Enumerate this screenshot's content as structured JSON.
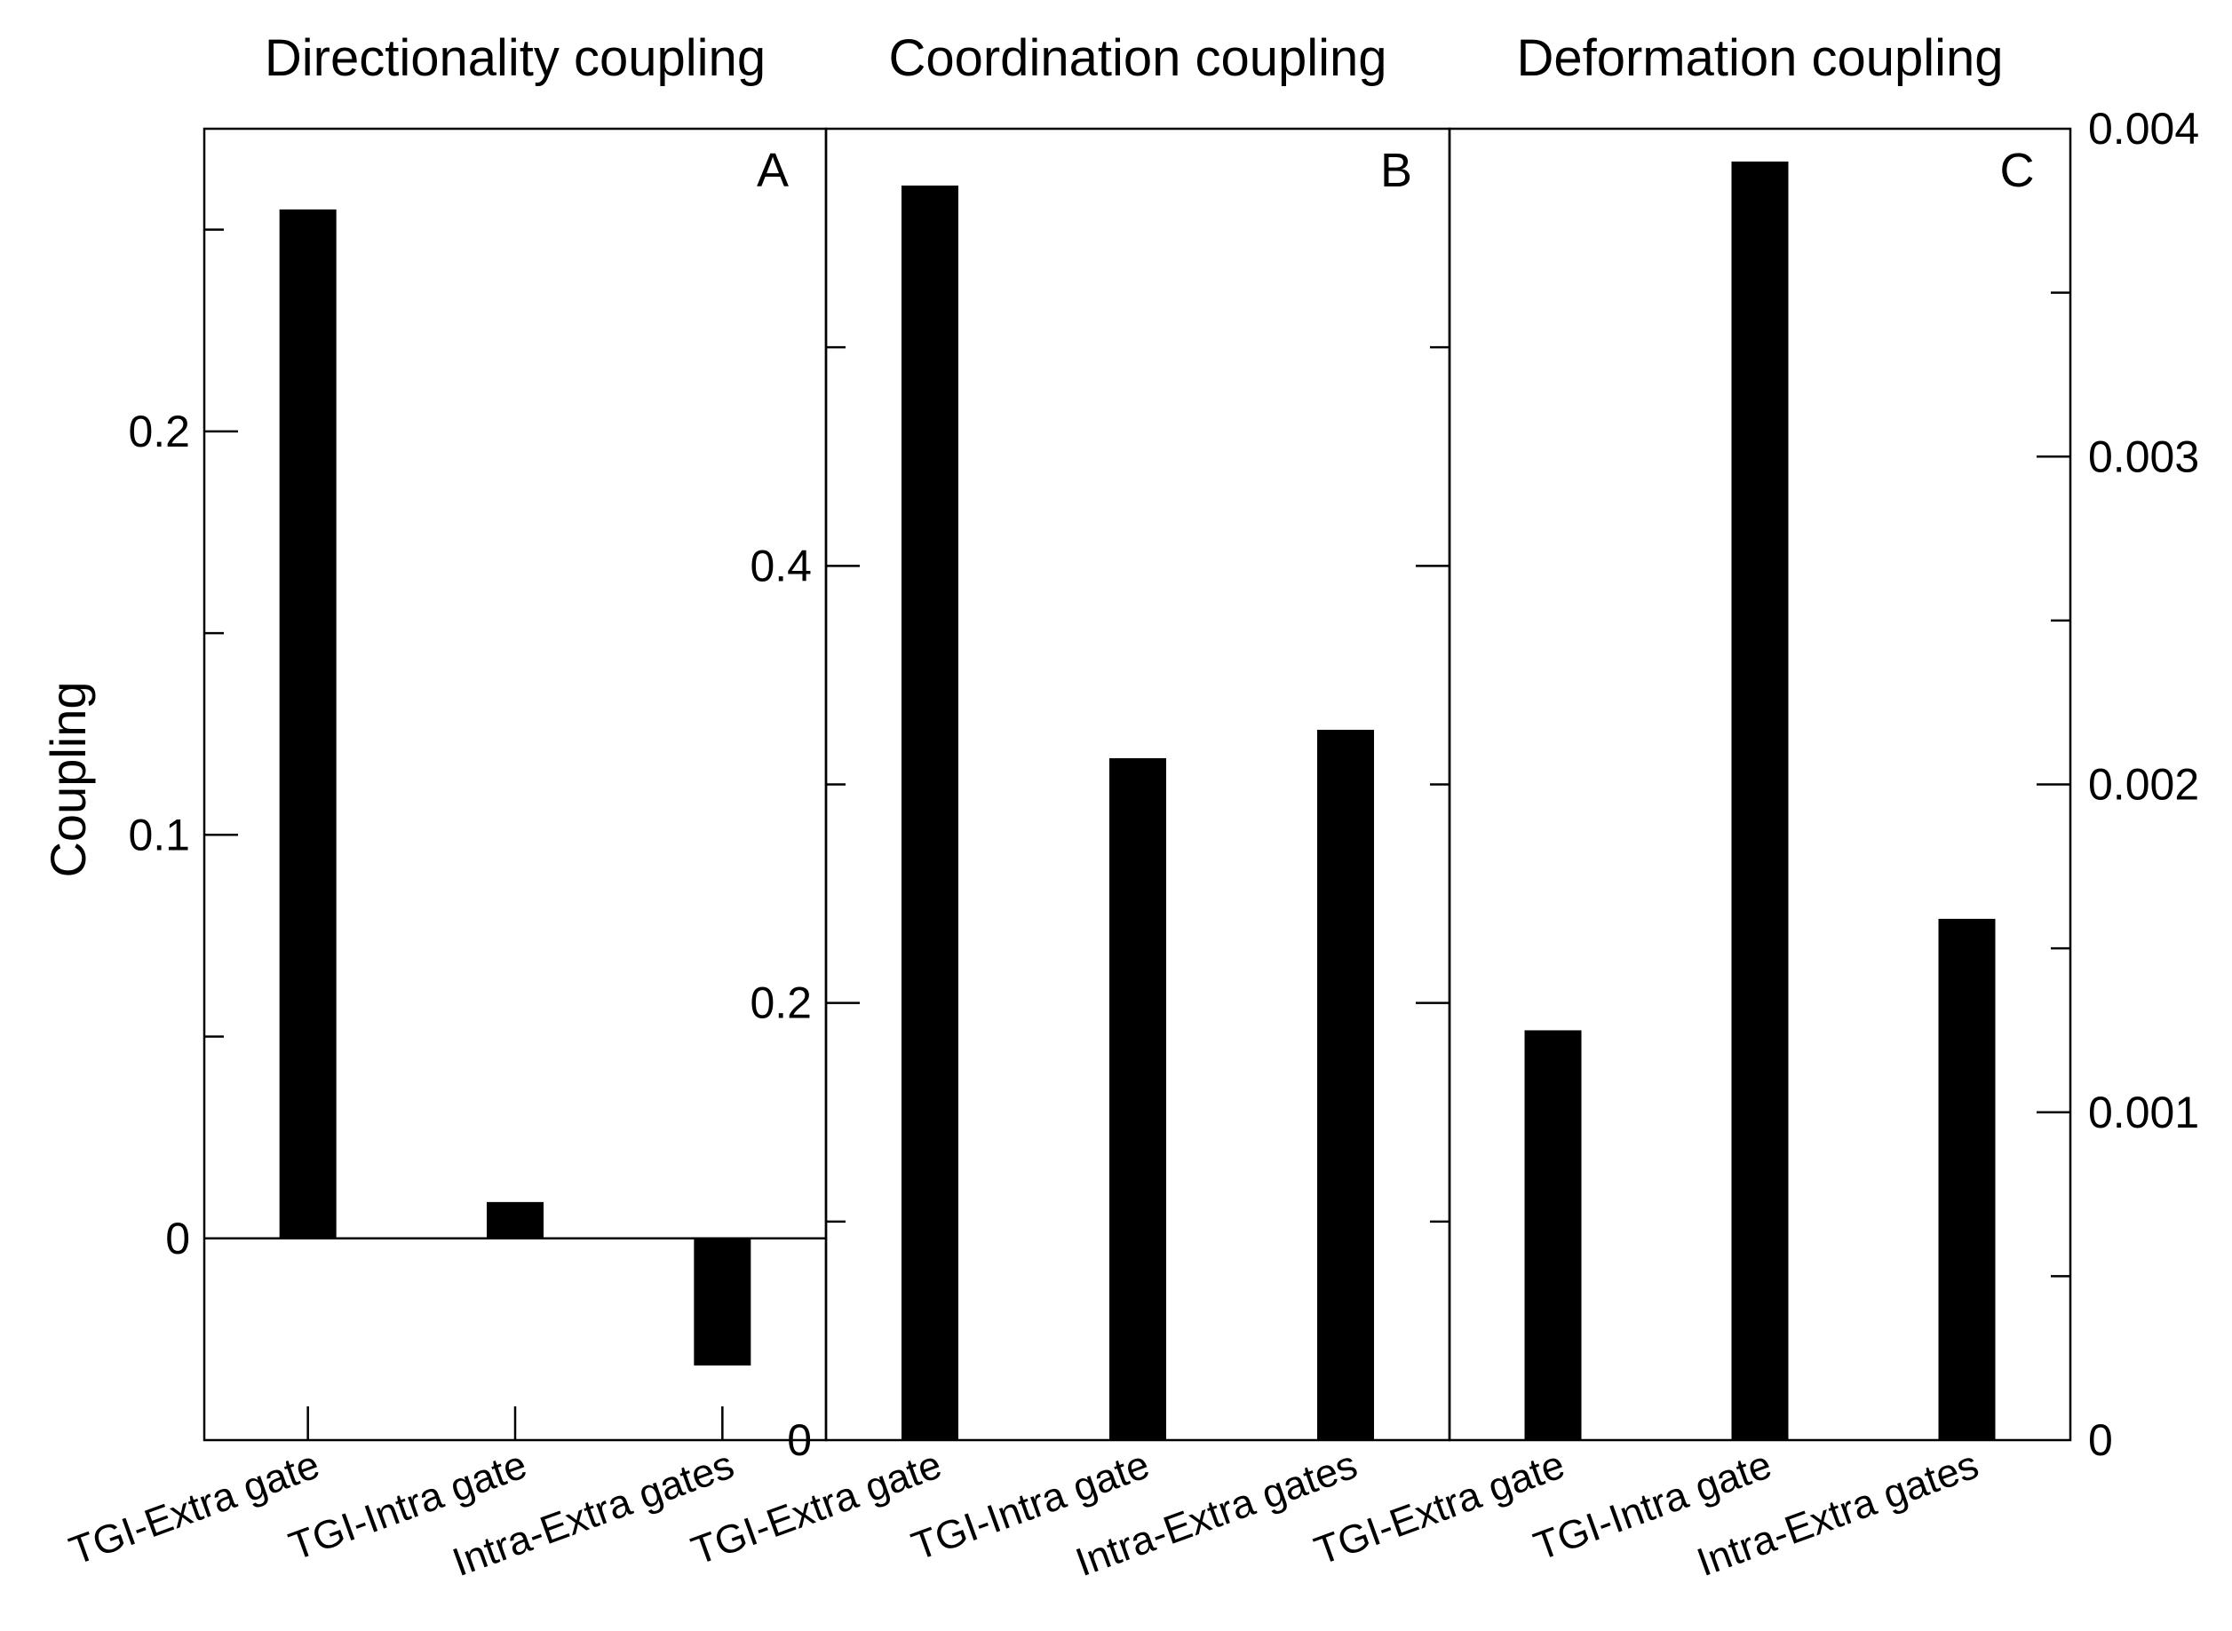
{
  "chart_data": [
    {
      "type": "bar",
      "panel_label": "A",
      "title": "Directionality coupling",
      "ylabel": "Coupling",
      "categories": [
        "TGI-Extra gate",
        "TGI-Intra gate",
        "Intra-Extra gates"
      ],
      "values": [
        0.255,
        0.009,
        -0.0315
      ],
      "ylim": [
        -0.05,
        0.275
      ],
      "yticks": [
        0,
        0.1,
        0.2
      ],
      "yticklabels": [
        "0",
        "0.1",
        "0.2"
      ],
      "minor_step": 0.05,
      "axis_side": "left",
      "zero_line": true,
      "grid": false,
      "bar_color": "#000000"
    },
    {
      "type": "bar",
      "panel_label": "B",
      "title": "Coordination coupling",
      "categories": [
        "TGI-Extra gate",
        "TGI-Intra gate",
        "Intra-Extra gates"
      ],
      "values": [
        0.574,
        0.312,
        0.325
      ],
      "ylim": [
        0,
        0.6
      ],
      "yticks": [
        0,
        0.2,
        0.4
      ],
      "yticklabels": [
        "0",
        "0.2",
        "0.4"
      ],
      "minor_step": 0.1,
      "axis_side": "left",
      "grid": false,
      "bar_color": "#000000"
    },
    {
      "type": "bar",
      "panel_label": "C",
      "title": "Deformation coupling",
      "categories": [
        "TGI-Extra gate",
        "TGI-Intra gate",
        "Intra-Extra gates"
      ],
      "values": [
        0.00125,
        0.0039,
        0.00159
      ],
      "ylim": [
        0,
        0.004
      ],
      "yticks": [
        0,
        0.001,
        0.002,
        0.003,
        0.004
      ],
      "yticklabels": [
        "0",
        "0.001",
        "0.002",
        "0.003",
        "0.004"
      ],
      "minor_step": 0.0005,
      "axis_side": "right",
      "grid": false,
      "bar_color": "#000000"
    }
  ]
}
